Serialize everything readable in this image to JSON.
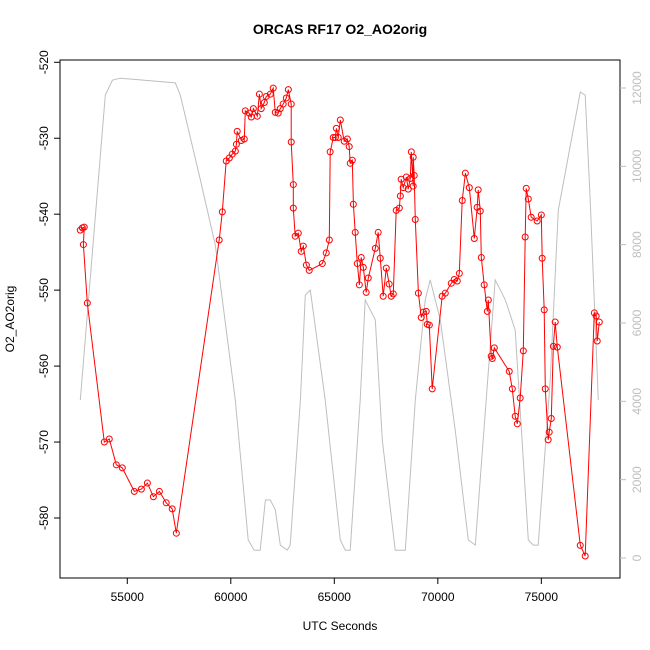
{
  "chart_data": {
    "type": "line",
    "title": "ORCAS RF17 O2_AO2orig",
    "x_label": "UTC Seconds",
    "y_label": "O2_AO2orig",
    "xlim": [
      51750,
      78800
    ],
    "ylim": [
      -587.9,
      -519.7
    ],
    "y2lim": [
      -511,
      12715
    ],
    "xticks": [
      55000,
      60000,
      65000,
      70000,
      75000
    ],
    "yticks": [
      -580,
      -570,
      -560,
      -550,
      -540,
      -530,
      -520
    ],
    "y2ticks": [
      0,
      2000,
      4000,
      6000,
      8000,
      10000,
      12000
    ],
    "series": [
      {
        "color": "#bebebe",
        "axis": "y2",
        "markers": false,
        "x": [
          52730,
          53940,
          54280,
          54660,
          57320,
          57560,
          58530,
          59250,
          60220,
          60840,
          61130,
          61420,
          61670,
          61910,
          62150,
          62390,
          62730,
          62870,
          63360,
          63600,
          63840,
          64560,
          65290,
          65530,
          65770,
          66250,
          66490,
          66980,
          67320,
          67940,
          68430,
          68910,
          69390,
          69630,
          70120,
          70840,
          71470,
          71810,
          72770,
          73260,
          73740,
          74370,
          74610,
          74850,
          75430,
          75820,
          76880,
          77120,
          77360,
          77750
        ],
        "values": [
          4034,
          11820,
          12200,
          12250,
          12130,
          11820,
          9650,
          7990,
          4034,
          460,
          200,
          200,
          1480,
          1480,
          1230,
          330,
          200,
          330,
          4034,
          6710,
          6840,
          4034,
          460,
          200,
          200,
          4034,
          6590,
          6080,
          3010,
          200,
          200,
          4034,
          6590,
          7100,
          6080,
          3270,
          460,
          330,
          7100,
          6590,
          5820,
          460,
          330,
          330,
          4540,
          8880,
          11900,
          11820,
          9140,
          4034
        ]
      },
      {
        "color": "#ff0000",
        "markers": true,
        "x": [
          52730,
          52830,
          52920,
          52880,
          53070,
          53890,
          54130,
          54470,
          54760,
          55340,
          55680,
          55970,
          56260,
          56550,
          56880,
          57170,
          57370,
          59440,
          59590,
          59780,
          59930,
          60070,
          60220,
          60270,
          60310,
          60510,
          60650,
          60700,
          60890,
          60990,
          61090,
          61280,
          61380,
          61470,
          61620,
          61710,
          61910,
          62050,
          62150,
          62290,
          62390,
          62530,
          62680,
          62780,
          62920,
          62920,
          63020,
          63020,
          63110,
          63260,
          63400,
          63500,
          63650,
          63790,
          64420,
          64610,
          64760,
          64800,
          64950,
          65050,
          65100,
          65190,
          65290,
          65480,
          65630,
          65720,
          65770,
          65870,
          65920,
          66010,
          66110,
          66210,
          66300,
          66400,
          66540,
          66640,
          66980,
          67120,
          67220,
          67360,
          67510,
          67650,
          67750,
          67850,
          67990,
          68140,
          68190,
          68230,
          68330,
          68480,
          68570,
          68670,
          68720,
          68810,
          68810,
          68860,
          68910,
          69060,
          69200,
          69300,
          69440,
          69490,
          69590,
          69730,
          70210,
          70360,
          70650,
          70790,
          70940,
          71040,
          71180,
          71330,
          71520,
          71760,
          71900,
          71950,
          72050,
          72100,
          72240,
          72390,
          72440,
          72580,
          72630,
          72730,
          73450,
          73600,
          73740,
          73840,
          73980,
          74130,
          74220,
          74270,
          74370,
          74510,
          74800,
          75000,
          75040,
          75140,
          75190,
          75330,
          75380,
          75480,
          75580,
          75670,
          75770,
          76880,
          77120,
          77560,
          77650,
          77700,
          77800
        ],
        "values": [
          -542.1,
          -541.8,
          -541.7,
          -544.0,
          -551.7,
          -570.0,
          -569.6,
          -573.0,
          -573.4,
          -576.5,
          -576.2,
          -575.4,
          -577.2,
          -576.5,
          -578.0,
          -578.8,
          -582.0,
          -543.4,
          -539.7,
          -533.0,
          -532.6,
          -532.1,
          -531.7,
          -530.8,
          -529.1,
          -530.3,
          -530.1,
          -526.4,
          -526.7,
          -527.2,
          -526.1,
          -527.1,
          -524.2,
          -526.1,
          -525.3,
          -524.5,
          -524.2,
          -523.4,
          -526.6,
          -526.7,
          -526.1,
          -525.5,
          -524.7,
          -523.6,
          -525.5,
          -530.5,
          -536.1,
          -539.2,
          -542.9,
          -542.5,
          -544.9,
          -544.2,
          -546.7,
          -547.4,
          -546.5,
          -545.1,
          -543.4,
          -531.8,
          -529.9,
          -529.9,
          -528.7,
          -529.9,
          -527.6,
          -530.4,
          -530.1,
          -531.1,
          -533.3,
          -532.9,
          -538.7,
          -542.4,
          -546.5,
          -549.3,
          -545.7,
          -547.0,
          -550.3,
          -548.4,
          -544.5,
          -542.4,
          -545.8,
          -550.8,
          -547.1,
          -549.2,
          -550.8,
          -550.5,
          -539.5,
          -539.2,
          -537.6,
          -535.4,
          -536.5,
          -535.1,
          -536.7,
          -535.3,
          -531.8,
          -536.3,
          -532.5,
          -534.9,
          -540.7,
          -550.4,
          -553.6,
          -552.9,
          -552.8,
          -554.5,
          -554.6,
          -563.0,
          -550.8,
          -550.4,
          -549.1,
          -548.6,
          -548.8,
          -547.8,
          -538.2,
          -534.6,
          -536.5,
          -543.2,
          -539.1,
          -536.8,
          -539.6,
          -545.7,
          -549.3,
          -552.8,
          -551.3,
          -558.7,
          -559.0,
          -557.6,
          -560.7,
          -563.0,
          -566.6,
          -567.6,
          -564.2,
          -558.0,
          -543.0,
          -536.6,
          -538.0,
          -540.4,
          -540.9,
          -540.1,
          -545.8,
          -552.6,
          -563.0,
          -569.7,
          -568.7,
          -566.9,
          -557.4,
          -554.2,
          -557.5,
          -583.6,
          -585.0,
          -553.0,
          -553.4,
          -556.7,
          -554.2
        ]
      }
    ]
  }
}
